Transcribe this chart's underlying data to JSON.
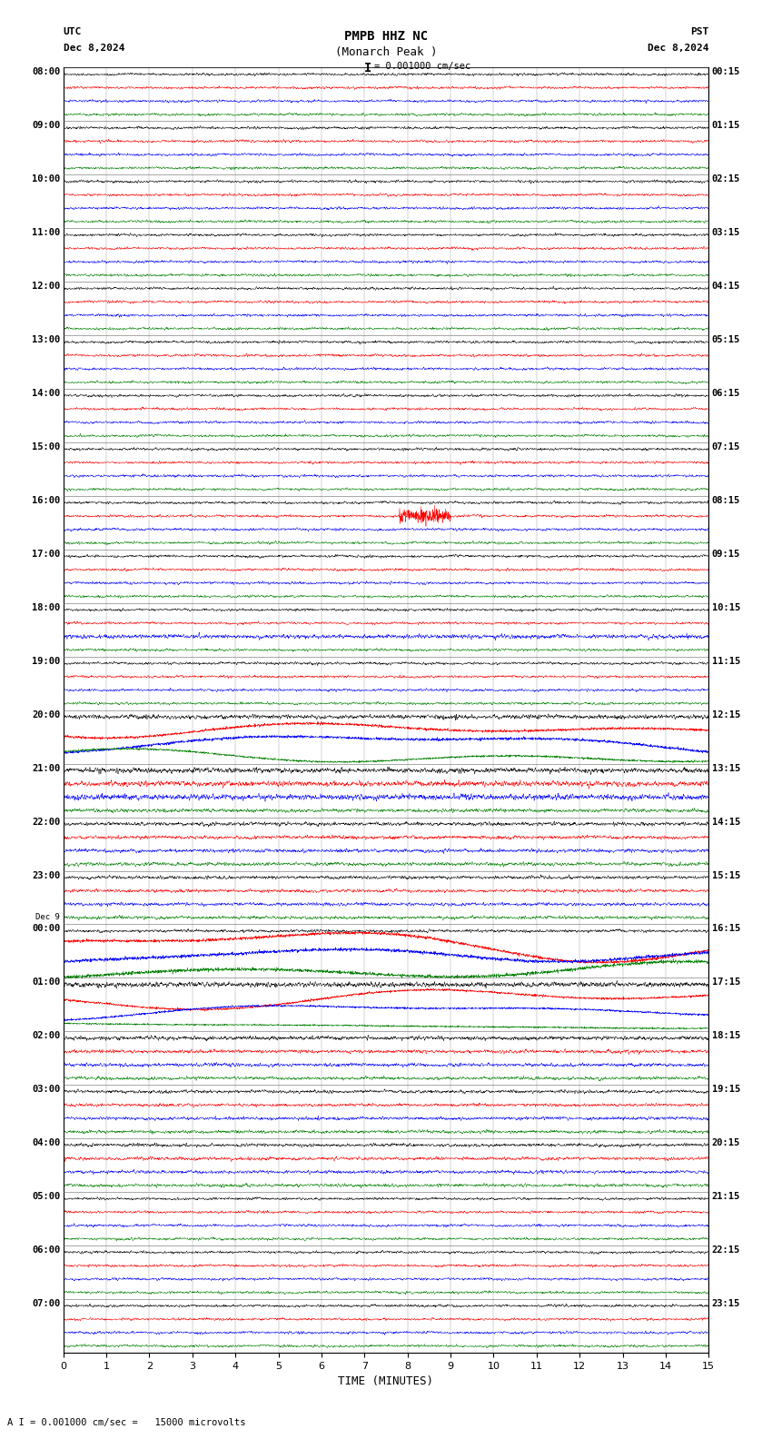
{
  "title_line1": "PMPB HHZ NC",
  "title_line2": "(Monarch Peak )",
  "scale_label": "I = 0.001000 cm/sec",
  "bottom_label": "A I = 0.001000 cm/sec =   15000 microvolts",
  "left_header": "UTC",
  "left_date": "Dec 8,2024",
  "right_header": "PST",
  "right_date": "Dec 8,2024",
  "xlabel": "TIME (MINUTES)",
  "xmin": 0,
  "xmax": 15,
  "xticks": [
    0,
    1,
    2,
    3,
    4,
    5,
    6,
    7,
    8,
    9,
    10,
    11,
    12,
    13,
    14,
    15
  ],
  "background_color": "#ffffff",
  "trace_colors": [
    "black",
    "red",
    "blue",
    "green"
  ],
  "utc_labels": [
    "08:00",
    "",
    "",
    "",
    "09:00",
    "",
    "",
    "",
    "10:00",
    "",
    "",
    "",
    "11:00",
    "",
    "",
    "",
    "12:00",
    "",
    "",
    "",
    "13:00",
    "",
    "",
    "",
    "14:00",
    "",
    "",
    "",
    "15:00",
    "",
    "",
    "",
    "16:00",
    "",
    "",
    "",
    "17:00",
    "",
    "",
    "",
    "18:00",
    "",
    "",
    "",
    "19:00",
    "",
    "",
    "",
    "20:00",
    "",
    "",
    "",
    "21:00",
    "",
    "",
    "",
    "22:00",
    "",
    "",
    "",
    "23:00",
    "",
    "",
    "",
    "Dec 9|00:00",
    "",
    "",
    "",
    "01:00",
    "",
    "",
    "",
    "02:00",
    "",
    "",
    "",
    "03:00",
    "",
    "",
    "",
    "04:00",
    "",
    "",
    "",
    "05:00",
    "",
    "",
    "",
    "06:00",
    "",
    "",
    "",
    "07:00",
    "",
    "",
    ""
  ],
  "pst_labels": [
    "00:15",
    "",
    "",
    "",
    "01:15",
    "",
    "",
    "",
    "02:15",
    "",
    "",
    "",
    "03:15",
    "",
    "",
    "",
    "04:15",
    "",
    "",
    "",
    "05:15",
    "",
    "",
    "",
    "06:15",
    "",
    "",
    "",
    "07:15",
    "",
    "",
    "",
    "08:15",
    "",
    "",
    "",
    "09:15",
    "",
    "",
    "",
    "10:15",
    "",
    "",
    "",
    "11:15",
    "",
    "",
    "",
    "12:15",
    "",
    "",
    "",
    "13:15",
    "",
    "",
    "",
    "14:15",
    "",
    "",
    "",
    "15:15",
    "",
    "",
    "",
    "16:15",
    "",
    "",
    "",
    "17:15",
    "",
    "",
    "",
    "18:15",
    "",
    "",
    "",
    "19:15",
    "",
    "",
    "",
    "20:15",
    "",
    "",
    "",
    "21:15",
    "",
    "",
    "",
    "22:15",
    "",
    "",
    "",
    "23:15",
    "",
    "",
    ""
  ]
}
